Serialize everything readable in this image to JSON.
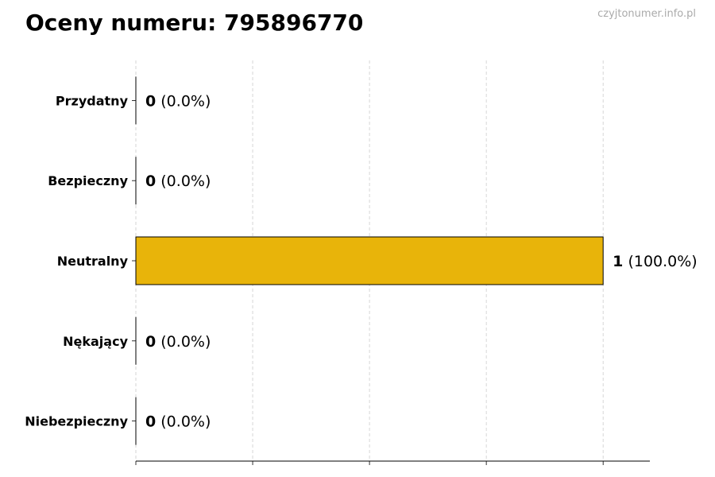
{
  "chart_data": {
    "type": "bar",
    "orientation": "horizontal",
    "title": "Oceny numeru: 795896770",
    "watermark": "czyjtonumer.info.pl",
    "categories": [
      "Przydatny",
      "Bezpieczny",
      "Neutralny",
      "Nękający",
      "Niebezpieczny"
    ],
    "values": [
      0,
      0,
      1,
      0,
      0
    ],
    "percent_labels": [
      "(0.0%)",
      "(0.0%)",
      "(100.0%)",
      "(0.0%)",
      "(0.0%)"
    ],
    "xlim": [
      0,
      1.1
    ],
    "xticks": [
      0,
      0.25,
      0.5,
      0.75,
      1.0
    ],
    "xtick_labels_shown": false,
    "grid": "vertical dashed",
    "bar_color": "#E8B40A",
    "xlabel": "",
    "ylabel": ""
  }
}
